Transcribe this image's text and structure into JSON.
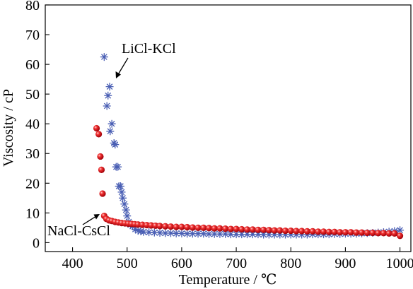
{
  "chart_data": {
    "type": "scatter",
    "xlabel": "Temperature / ℃",
    "ylabel": "Viscosity / cP",
    "xlim": [
      350,
      1020
    ],
    "ylim": [
      -3,
      80
    ],
    "xticks": [
      400,
      500,
      600,
      700,
      800,
      900,
      1000
    ],
    "yticks": [
      0,
      10,
      20,
      30,
      40,
      50,
      60,
      70,
      80
    ],
    "grid": false,
    "series": [
      {
        "name": "LiCl-KCl",
        "marker": "asterisk",
        "color": "#4a5fb4",
        "x": [
          458,
          463,
          465,
          468,
          469,
          472,
          476,
          478,
          480,
          483,
          485,
          488,
          490,
          492,
          495,
          498,
          500,
          503,
          506,
          510,
          515,
          520,
          525,
          530,
          540,
          550,
          560,
          570,
          580,
          590,
          600,
          610,
          620,
          630,
          640,
          650,
          660,
          670,
          680,
          690,
          700,
          710,
          720,
          730,
          740,
          750,
          760,
          770,
          780,
          790,
          800,
          810,
          820,
          830,
          840,
          850,
          860,
          870,
          880,
          890,
          900,
          910,
          920,
          930,
          940,
          950,
          960,
          970,
          980,
          990,
          1000
        ],
        "y": [
          62.5,
          46,
          49.5,
          52.5,
          37.5,
          40,
          33.5,
          33,
          25.5,
          25.5,
          19,
          19,
          17,
          15,
          13,
          11,
          9,
          7,
          6,
          5.5,
          4.5,
          4,
          3.8,
          3.6,
          3.5,
          3.4,
          3.3,
          3.2,
          3.2,
          3.1,
          3.1,
          3.0,
          3.0,
          3.0,
          3.0,
          2.9,
          2.9,
          2.9,
          2.9,
          2.8,
          2.8,
          2.8,
          2.8,
          2.8,
          2.8,
          2.7,
          2.7,
          2.7,
          2.7,
          2.7,
          2.7,
          2.7,
          2.7,
          2.7,
          2.8,
          2.8,
          2.8,
          2.8,
          2.9,
          2.9,
          3.0,
          3.0,
          3.0,
          3.1,
          3.2,
          3.3,
          3.4,
          3.5,
          3.7,
          3.9,
          4.2
        ]
      },
      {
        "name": "NaCl-CsCl",
        "marker": "sphere",
        "color": "#e0141e",
        "x": [
          444,
          448,
          451,
          453,
          455,
          458,
          462,
          467,
          472,
          478,
          484,
          490,
          496,
          502,
          508,
          514,
          520,
          528,
          536,
          544,
          552,
          560,
          570,
          580,
          590,
          600,
          610,
          620,
          630,
          640,
          650,
          660,
          670,
          680,
          690,
          700,
          710,
          720,
          730,
          740,
          750,
          760,
          770,
          780,
          790,
          800,
          810,
          820,
          830,
          840,
          850,
          860,
          870,
          880,
          890,
          900,
          910,
          920,
          930,
          940,
          950,
          960,
          970,
          980,
          990,
          1000
        ],
        "y": [
          38.5,
          36.5,
          29,
          24.5,
          16.5,
          9,
          8,
          7.5,
          7.3,
          7.0,
          6.8,
          6.6,
          6.5,
          6.4,
          6.3,
          6.2,
          6.1,
          6.0,
          5.9,
          5.8,
          5.7,
          5.6,
          5.5,
          5.4,
          5.3,
          5.3,
          5.2,
          5.1,
          5.0,
          5.0,
          4.9,
          4.8,
          4.8,
          4.7,
          4.6,
          4.6,
          4.5,
          4.4,
          4.4,
          4.3,
          4.3,
          4.2,
          4.1,
          4.1,
          4.0,
          4.0,
          3.9,
          3.9,
          3.8,
          3.8,
          3.7,
          3.7,
          3.6,
          3.6,
          3.5,
          3.5,
          3.5,
          3.4,
          3.4,
          3.3,
          3.3,
          3.2,
          3.2,
          3.1,
          3.1,
          2.3
        ]
      }
    ],
    "annotations": [
      {
        "text": "LiCl-KCl",
        "series": "LiCl-KCl"
      },
      {
        "text": "NaCl-CsCl",
        "series": "NaCl-CsCl"
      }
    ]
  }
}
